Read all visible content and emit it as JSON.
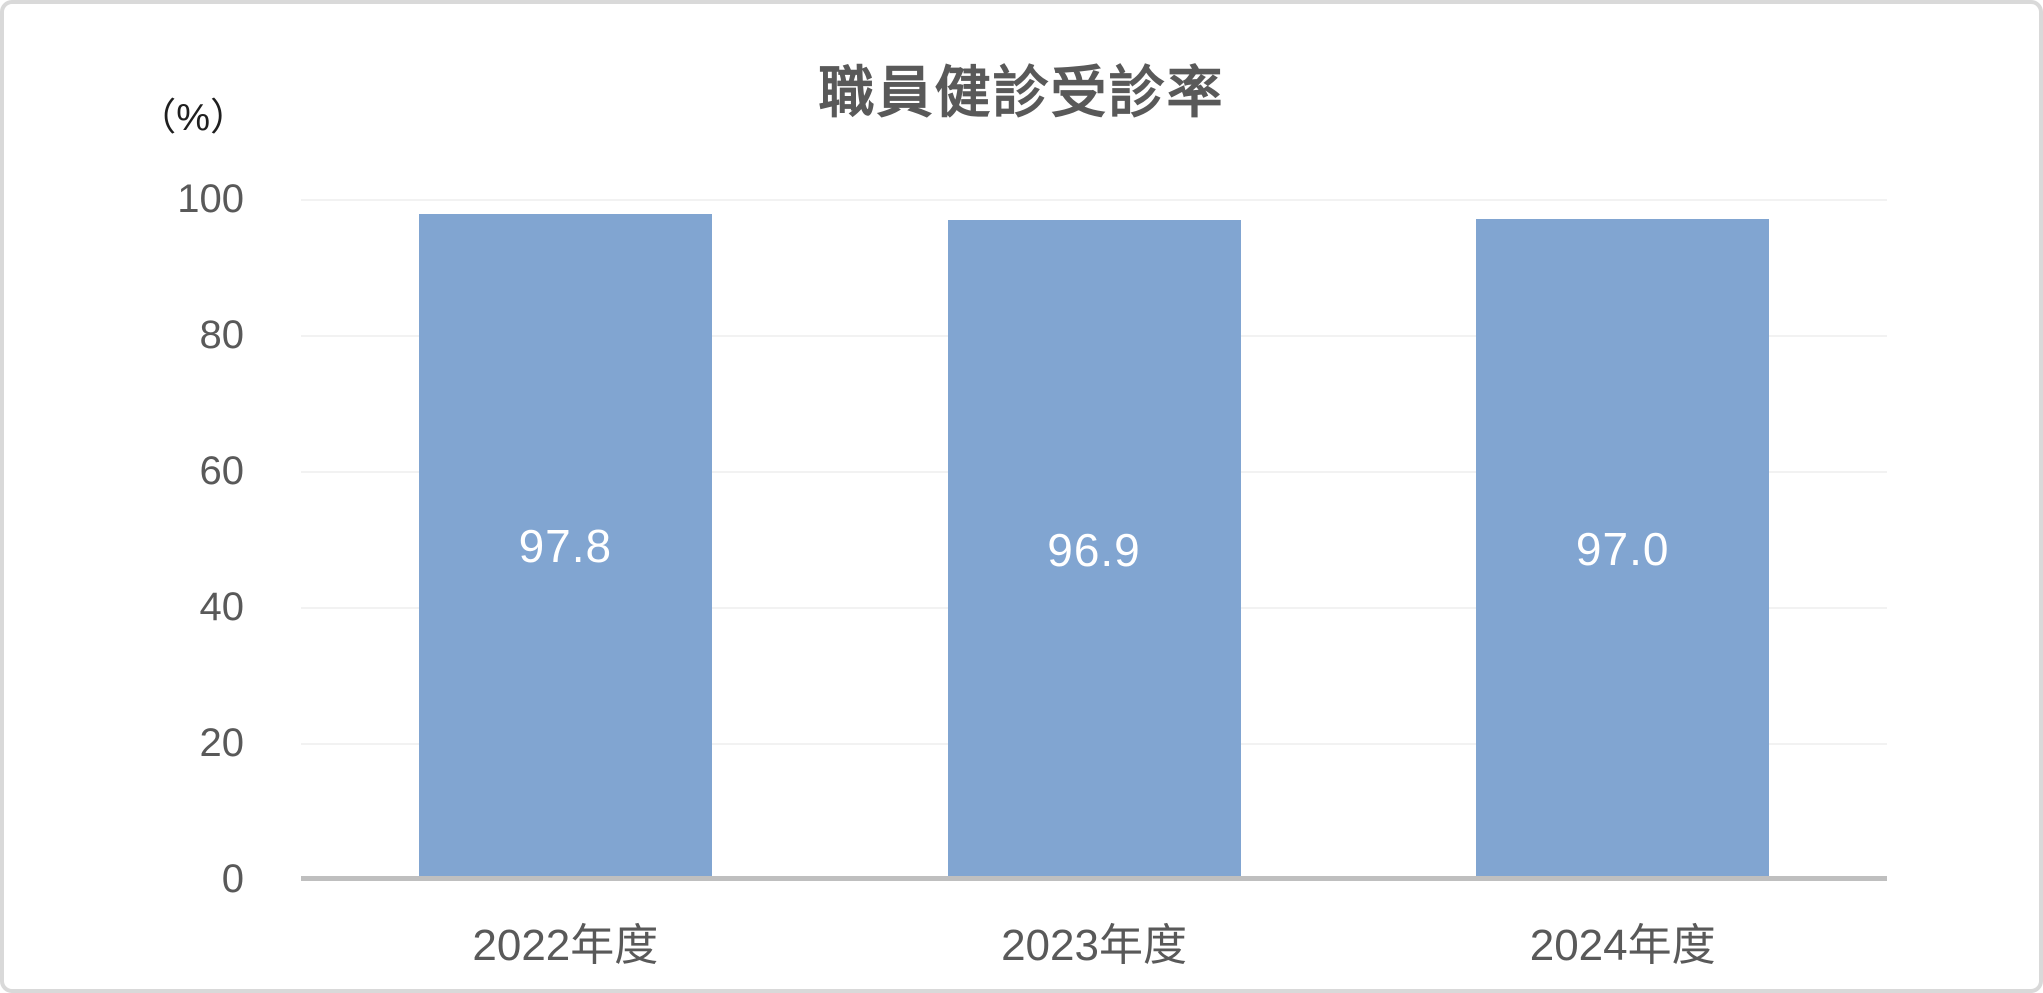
{
  "chart_data": {
    "type": "bar",
    "title": "職員健診受診率",
    "ylabel": "（%）",
    "categories": [
      "2022年度",
      "2023年度",
      "2024年度"
    ],
    "values": [
      97.8,
      96.9,
      97.0
    ],
    "data_labels": [
      "97.8",
      "96.9",
      "97.0"
    ],
    "ylim": [
      0,
      100
    ],
    "yticks": [
      "100",
      "80",
      "60",
      "40",
      "20",
      "0"
    ],
    "grid": "horizontal-light",
    "legend": "none",
    "colors": {
      "bar_fill": "#81A5D1",
      "data_label": "#FFFFFF",
      "axis_line": "#BFBFBF",
      "gridline": "#F2F2F2",
      "text": "#595959",
      "unit_text": "#1F1F1F",
      "frame_border": "#D9D9D9"
    }
  }
}
